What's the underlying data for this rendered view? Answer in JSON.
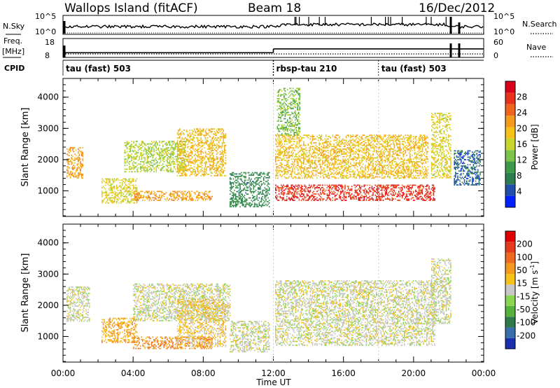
{
  "header": {
    "station": "Wallops Island (fitACF)",
    "beam": "Beam 18",
    "date": "16/Dec/2012"
  },
  "top_panels": {
    "nsky_label": "N.Sky",
    "nsky_ticks": [
      "10^5",
      "10^0"
    ],
    "nsearch_label": "N.Search",
    "nsearch_ticks": [
      "10^5",
      "10^0"
    ],
    "freq_label": "Freq.",
    "freq_unit": "[MHz]",
    "freq_ticks": [
      "18",
      "8"
    ],
    "nave_label": "Nave",
    "nave_ticks": [
      "60",
      "0"
    ],
    "cpid_label": "CPID",
    "cpid_segments": [
      {
        "label": "tau (fast) 503",
        "start_h": 0,
        "end_h": 12
      },
      {
        "label": "rbsp-tau 210",
        "start_h": 12,
        "end_h": 18
      },
      {
        "label": "tau (fast) 503",
        "start_h": 18,
        "end_h": 24
      }
    ]
  },
  "colorbars": {
    "power": {
      "title": "Power [dB]",
      "ticks": [
        "28",
        "24",
        "20",
        "16",
        "12",
        "8",
        "4"
      ],
      "colors": [
        "#0020ff",
        "#1f4fa8",
        "#2e7d4f",
        "#3c9a4a",
        "#7cc34a",
        "#c7d62a",
        "#f6c21a",
        "#f49a1c",
        "#f0641e",
        "#e8321c",
        "#d8001a"
      ]
    },
    "velocity": {
      "title": "Velocity [m s^-1]",
      "ticks": [
        "200",
        "100",
        "50",
        "15",
        "-15",
        "-50",
        "-100",
        "-200"
      ],
      "colors": [
        "#1a2fb0",
        "#3a6fae",
        "#2f7a4a",
        "#56b23c",
        "#8bd651",
        "#c8c8c8",
        "#f6c21a",
        "#f39a1e",
        "#ee6a1e",
        "#e63a1c",
        "#e00000"
      ]
    }
  },
  "axes": {
    "ylabel": "Slant Range [km]",
    "yticks": [
      "4000",
      "3000",
      "2000",
      "1000"
    ],
    "xticks": [
      "00:00",
      "04:00",
      "08:00",
      "12:00",
      "16:00",
      "20:00",
      "00:00"
    ],
    "xlabel": "Time UT"
  },
  "chart_data": {
    "type": "heatmap",
    "x_unit": "hours UT",
    "x_range": [
      0,
      24
    ],
    "y_unit": "km",
    "y_range": [
      180,
      4600
    ],
    "panels": [
      {
        "name": "Power",
        "value_range": [
          0,
          30
        ],
        "regions": [
          {
            "t": [
              0.2,
              1.1
            ],
            "r": [
              1400,
              2400
            ],
            "v": 20
          },
          {
            "t": [
              2.2,
              4.2
            ],
            "r": [
              600,
              1400
            ],
            "v": 16
          },
          {
            "t": [
              4.0,
              8.5
            ],
            "r": [
              700,
              1000
            ],
            "v": 20
          },
          {
            "t": [
              3.5,
              7.0
            ],
            "r": [
              1600,
              2600
            ],
            "v": 14
          },
          {
            "t": [
              6.5,
              9.3
            ],
            "r": [
              1500,
              3000
            ],
            "v": 18
          },
          {
            "t": [
              9.5,
              11.8
            ],
            "r": [
              500,
              1600
            ],
            "v": 8
          },
          {
            "t": [
              12.1,
              21.2
            ],
            "r": [
              700,
              1200
            ],
            "v": 26
          },
          {
            "t": [
              12.1,
              20.8
            ],
            "r": [
              1400,
              2800
            ],
            "v": 18
          },
          {
            "t": [
              12.2,
              13.5
            ],
            "r": [
              2800,
              4300
            ],
            "v": 12
          },
          {
            "t": [
              21.0,
              22.1
            ],
            "r": [
              1400,
              3500
            ],
            "v": 16
          },
          {
            "t": [
              22.3,
              23.8
            ],
            "r": [
              1200,
              2300
            ],
            "v": 5
          }
        ]
      },
      {
        "name": "Velocity",
        "value_range": [
          -200,
          200
        ],
        "regions": [
          {
            "t": [
              0.2,
              1.5
            ],
            "r": [
              1500,
              2600
            ],
            "v": 0
          },
          {
            "t": [
              2.2,
              4.2
            ],
            "r": [
              800,
              1600
            ],
            "v": 60
          },
          {
            "t": [
              4.0,
              8.5
            ],
            "r": [
              600,
              1000
            ],
            "v": 80
          },
          {
            "t": [
              4.0,
              9.5
            ],
            "r": [
              1500,
              2700
            ],
            "v": 0
          },
          {
            "t": [
              6.5,
              9.3
            ],
            "r": [
              700,
              2200
            ],
            "v": 30
          },
          {
            "t": [
              9.5,
              11.8
            ],
            "r": [
              500,
              1500
            ],
            "v": 0
          },
          {
            "t": [
              12.1,
              21.2
            ],
            "r": [
              700,
              2800
            ],
            "v": 0
          },
          {
            "t": [
              21.0,
              22.1
            ],
            "r": [
              1400,
              3500
            ],
            "v": 0
          }
        ]
      }
    ],
    "nsky": {
      "ylim_log10": [
        0,
        5
      ],
      "baseline": 0.6
    },
    "freq": {
      "ylim": [
        8,
        18
      ],
      "segments": [
        {
          "t": [
            0,
            12
          ],
          "v": 10.5
        },
        {
          "t": [
            12,
            24
          ],
          "v": 12.5
        }
      ]
    },
    "nave": {
      "ylim": [
        0,
        60
      ],
      "baseline": 3
    }
  }
}
